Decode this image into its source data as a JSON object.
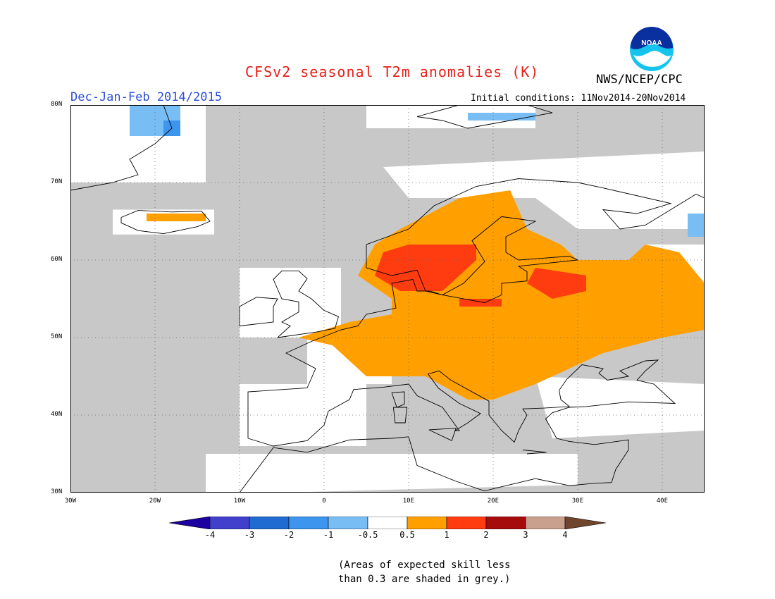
{
  "header": {
    "title": "CFSv2 seasonal T2m anomalies (K)",
    "organization": "NWS/NCEP/CPC",
    "season": "Dec-Jan-Feb 2014/2015",
    "initial_conditions": "Initial conditions: 11Nov2014-20Nov2014",
    "logo_text": "NOAA"
  },
  "map": {
    "region": "Europe",
    "lon_range": [
      -30,
      45
    ],
    "lat_range": [
      30,
      80
    ],
    "lon_ticks": [
      "30W",
      "20W",
      "10W",
      "0",
      "10E",
      "20E",
      "30E",
      "40E"
    ],
    "lat_ticks": [
      "80N",
      "70N",
      "60N",
      "50N",
      "40N",
      "30N"
    ],
    "grid": true
  },
  "colorbar": {
    "labels": [
      "-4",
      "-3",
      "-2",
      "-1",
      "-0.5",
      "0.5",
      "1",
      "2",
      "3",
      "4"
    ],
    "colors": [
      "#1c00a0",
      "#4040cc",
      "#1f6bd1",
      "#3d95ee",
      "#79bdf5",
      "#ffffff",
      "#ff9f00",
      "#ff3b10",
      "#a60c0c",
      "#c9a08d",
      "#70452e"
    ],
    "skill_grey": "#c8c8c8"
  },
  "footnote": {
    "line1": "(Areas of expected skill less",
    "line2": "than 0.3 are shaded in grey.)"
  }
}
